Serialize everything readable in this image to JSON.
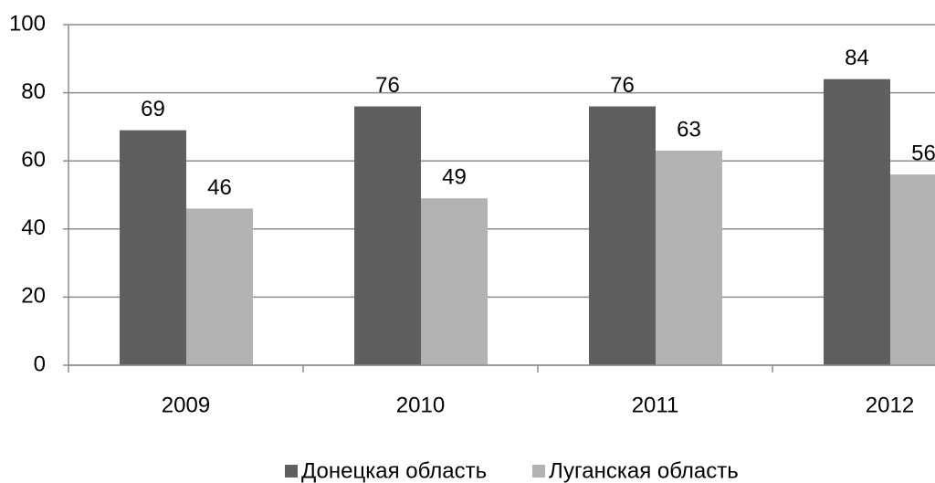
{
  "chart_data": {
    "type": "bar",
    "categories": [
      "2009",
      "2010",
      "2011",
      "2012"
    ],
    "series": [
      {
        "name": "Донецкая область",
        "color": "#5f5f5f",
        "values": [
          69,
          76,
          76,
          84
        ]
      },
      {
        "name": "Луганская область",
        "color": "#b3b3b3",
        "values": [
          46,
          49,
          63,
          56
        ]
      }
    ],
    "ylim": [
      0,
      100
    ],
    "yticks": [
      0,
      20,
      40,
      60,
      80,
      100
    ],
    "grid": true,
    "legend": "bottom"
  }
}
